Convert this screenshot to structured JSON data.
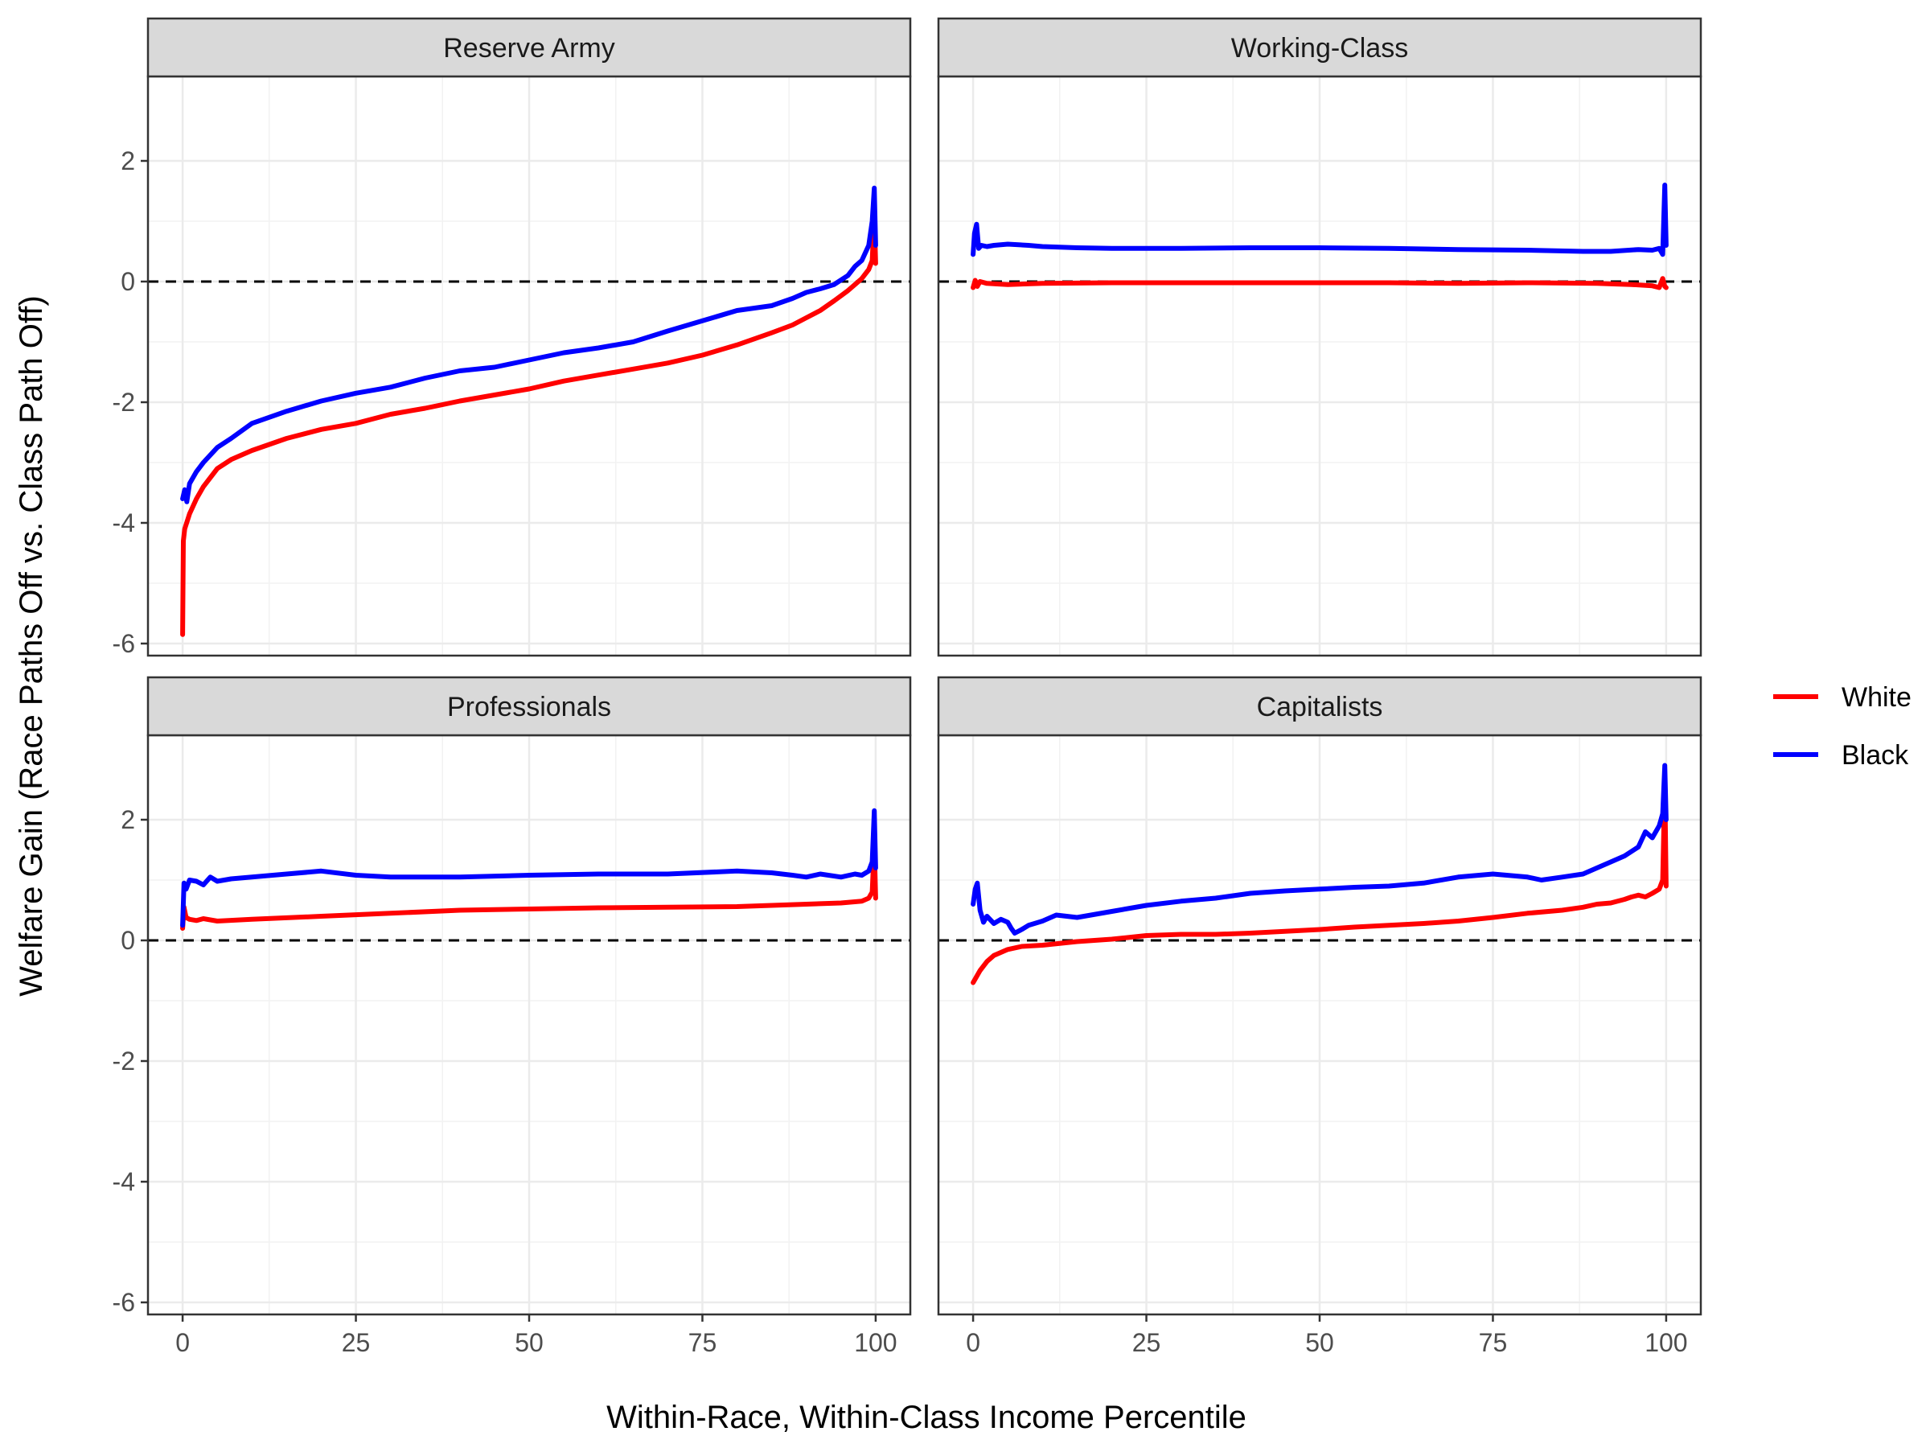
{
  "chart_data": {
    "type": "line",
    "facets": [
      "Reserve Army",
      "Working-Class",
      "Professionals",
      "Capitalists"
    ],
    "xlabel": "Within-Race, Within-Class Income Percentile",
    "ylabel": "Welfare Gain (Race Paths Off vs. Class Path Off)",
    "xlim": [
      -5,
      105
    ],
    "ylim": [
      -6.2,
      3.4
    ],
    "xticks": [
      0,
      25,
      50,
      75,
      100
    ],
    "yticks": [
      -6,
      -4,
      -2,
      0,
      2
    ],
    "grid": true,
    "reference_line": {
      "y": 0,
      "style": "dashed"
    },
    "legend": {
      "placement": "right",
      "entries": [
        {
          "name": "White",
          "color": "#ff0000"
        },
        {
          "name": "Black",
          "color": "#0000ff"
        }
      ]
    },
    "panels": [
      {
        "facet": "Reserve Army",
        "series": [
          {
            "name": "White",
            "color": "#ff0000",
            "x": [
              0,
              0.1,
              0.3,
              1,
              2,
              3,
              5,
              7,
              10,
              15,
              20,
              25,
              30,
              35,
              40,
              45,
              50,
              55,
              60,
              65,
              70,
              75,
              80,
              85,
              88,
              90,
              92,
              94,
              96,
              97,
              98,
              99,
              99.5,
              99.8,
              100
            ],
            "y": [
              -5.85,
              -4.3,
              -4.1,
              -3.85,
              -3.6,
              -3.4,
              -3.1,
              -2.95,
              -2.8,
              -2.6,
              -2.45,
              -2.35,
              -2.2,
              -2.1,
              -1.98,
              -1.88,
              -1.78,
              -1.65,
              -1.55,
              -1.45,
              -1.35,
              -1.22,
              -1.05,
              -0.85,
              -0.72,
              -0.6,
              -0.48,
              -0.32,
              -0.15,
              -0.05,
              0.05,
              0.2,
              0.35,
              1.1,
              0.3
            ]
          },
          {
            "name": "Black",
            "color": "#0000ff",
            "x": [
              0,
              0.3,
              0.6,
              1,
              2,
              3,
              5,
              7,
              10,
              15,
              20,
              25,
              30,
              35,
              40,
              45,
              50,
              55,
              60,
              65,
              70,
              75,
              80,
              85,
              88,
              90,
              92,
              94,
              96,
              97,
              98,
              99,
              99.5,
              99.8,
              100
            ],
            "y": [
              -3.6,
              -3.45,
              -3.65,
              -3.35,
              -3.15,
              -3.0,
              -2.75,
              -2.6,
              -2.35,
              -2.15,
              -1.98,
              -1.85,
              -1.75,
              -1.6,
              -1.48,
              -1.42,
              -1.3,
              -1.18,
              -1.1,
              -1.0,
              -0.82,
              -0.65,
              -0.48,
              -0.4,
              -0.28,
              -0.18,
              -0.12,
              -0.05,
              0.1,
              0.25,
              0.35,
              0.6,
              1.0,
              1.55,
              0.6
            ]
          }
        ]
      },
      {
        "facet": "Working-Class",
        "series": [
          {
            "name": "White",
            "color": "#ff0000",
            "x": [
              0,
              0.3,
              0.6,
              1,
              2,
              5,
              10,
              20,
              30,
              40,
              50,
              60,
              70,
              80,
              90,
              95,
              98,
              99,
              99.5,
              99.8,
              100
            ],
            "y": [
              -0.1,
              0.02,
              -0.08,
              0.0,
              -0.03,
              -0.05,
              -0.03,
              -0.02,
              -0.02,
              -0.02,
              -0.02,
              -0.02,
              -0.03,
              -0.02,
              -0.03,
              -0.05,
              -0.07,
              -0.1,
              0.05,
              -0.08,
              -0.1
            ]
          },
          {
            "name": "Black",
            "color": "#0000ff",
            "x": [
              0,
              0.2,
              0.5,
              0.8,
              1.2,
              2,
              3,
              5,
              8,
              10,
              15,
              20,
              30,
              40,
              50,
              60,
              70,
              80,
              88,
              92,
              96,
              98,
              99,
              99.5,
              99.8,
              100
            ],
            "y": [
              0.45,
              0.8,
              0.95,
              0.55,
              0.6,
              0.58,
              0.6,
              0.62,
              0.6,
              0.58,
              0.56,
              0.55,
              0.55,
              0.56,
              0.56,
              0.55,
              0.53,
              0.52,
              0.5,
              0.5,
              0.53,
              0.52,
              0.55,
              0.45,
              1.6,
              0.6
            ]
          }
        ]
      },
      {
        "facet": "Professionals",
        "series": [
          {
            "name": "White",
            "color": "#ff0000",
            "x": [
              0,
              0.2,
              0.5,
              1,
              2,
              3,
              5,
              10,
              20,
              30,
              40,
              50,
              60,
              70,
              80,
              90,
              95,
              98,
              99,
              99.5,
              99.8,
              100
            ],
            "y": [
              0.2,
              0.55,
              0.38,
              0.35,
              0.33,
              0.36,
              0.32,
              0.35,
              0.4,
              0.45,
              0.5,
              0.52,
              0.54,
              0.55,
              0.56,
              0.6,
              0.62,
              0.65,
              0.7,
              0.8,
              1.6,
              0.7
            ]
          },
          {
            "name": "Black",
            "color": "#0000ff",
            "x": [
              0,
              0.2,
              0.5,
              1,
              2,
              3,
              4,
              5,
              7,
              10,
              15,
              20,
              25,
              30,
              40,
              50,
              60,
              70,
              80,
              85,
              88,
              90,
              92,
              95,
              97,
              98,
              99,
              99.5,
              99.8,
              100
            ],
            "y": [
              0.25,
              0.95,
              0.85,
              1.0,
              0.98,
              0.92,
              1.05,
              0.98,
              1.02,
              1.05,
              1.1,
              1.15,
              1.08,
              1.05,
              1.05,
              1.08,
              1.1,
              1.1,
              1.15,
              1.12,
              1.08,
              1.05,
              1.1,
              1.05,
              1.1,
              1.08,
              1.15,
              1.3,
              2.15,
              1.2
            ]
          }
        ]
      },
      {
        "facet": "Capitalists",
        "series": [
          {
            "name": "White",
            "color": "#ff0000",
            "x": [
              0,
              0.5,
              1,
              2,
              3,
              5,
              7,
              10,
              15,
              20,
              25,
              30,
              35,
              40,
              45,
              50,
              55,
              60,
              65,
              70,
              75,
              80,
              85,
              88,
              90,
              92,
              94,
              95,
              96,
              97,
              98,
              99,
              99.5,
              99.8,
              100
            ],
            "y": [
              -0.7,
              -0.6,
              -0.5,
              -0.35,
              -0.25,
              -0.15,
              -0.1,
              -0.08,
              -0.02,
              0.02,
              0.08,
              0.1,
              0.1,
              0.12,
              0.15,
              0.18,
              0.22,
              0.25,
              0.28,
              0.32,
              0.38,
              0.45,
              0.5,
              0.55,
              0.6,
              0.62,
              0.68,
              0.72,
              0.75,
              0.72,
              0.78,
              0.85,
              1.0,
              2.6,
              0.9
            ]
          },
          {
            "name": "Black",
            "color": "#0000ff",
            "x": [
              0,
              0.3,
              0.6,
              1,
              1.5,
              2,
              3,
              4,
              5,
              5.5,
              6,
              7,
              8,
              10,
              12,
              15,
              20,
              25,
              30,
              35,
              40,
              45,
              50,
              55,
              60,
              65,
              70,
              75,
              80,
              82,
              85,
              88,
              90,
              92,
              94,
              96,
              97,
              98,
              99,
              99.5,
              99.8,
              100
            ],
            "y": [
              0.6,
              0.85,
              0.95,
              0.5,
              0.3,
              0.4,
              0.28,
              0.35,
              0.3,
              0.2,
              0.12,
              0.18,
              0.25,
              0.32,
              0.42,
              0.38,
              0.48,
              0.58,
              0.65,
              0.7,
              0.78,
              0.82,
              0.85,
              0.88,
              0.9,
              0.95,
              1.05,
              1.1,
              1.05,
              1.0,
              1.05,
              1.1,
              1.2,
              1.3,
              1.4,
              1.55,
              1.8,
              1.7,
              1.9,
              2.1,
              2.9,
              2.0
            ]
          }
        ]
      }
    ]
  }
}
